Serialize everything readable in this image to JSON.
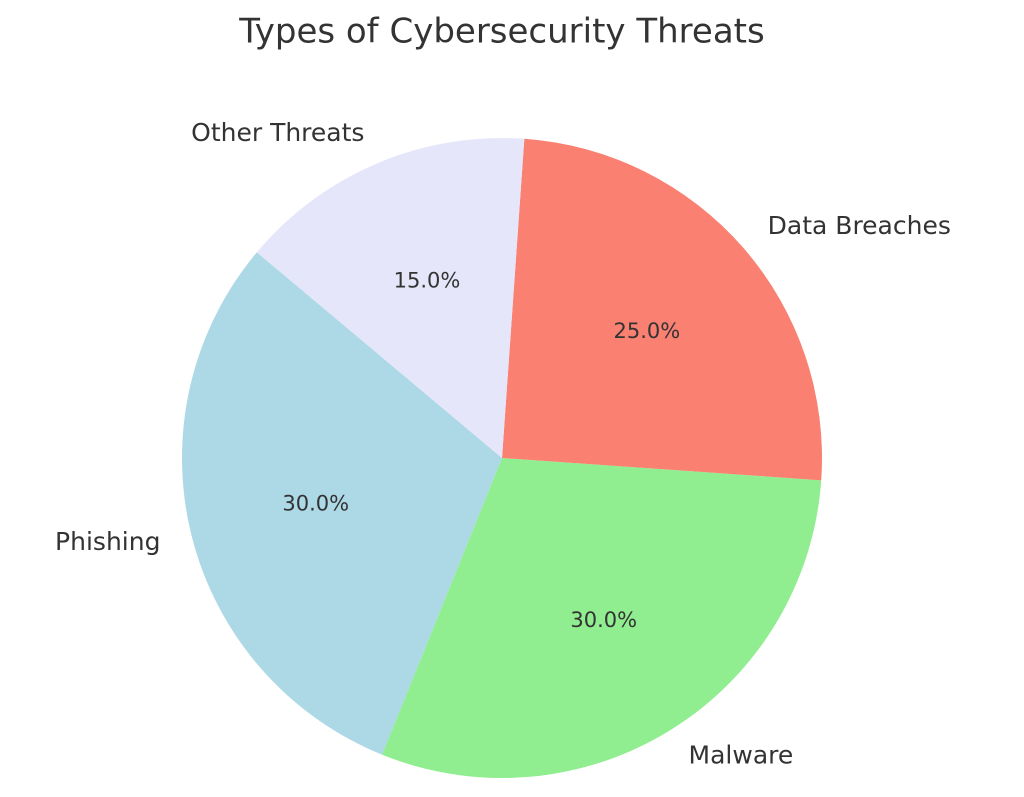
{
  "chart_data": {
    "type": "pie",
    "title": "Types of Cybersecurity Threats",
    "categories": [
      "Phishing",
      "Malware",
      "Data Breaches",
      "Other Threats"
    ],
    "values": [
      30,
      30,
      25,
      15
    ],
    "value_labels": [
      "30.0%",
      "30.0%",
      "25.0%",
      "15.0%"
    ],
    "colors": [
      "#add8e6",
      "#90ee90",
      "#fa8072",
      "#e6e6fa"
    ]
  }
}
